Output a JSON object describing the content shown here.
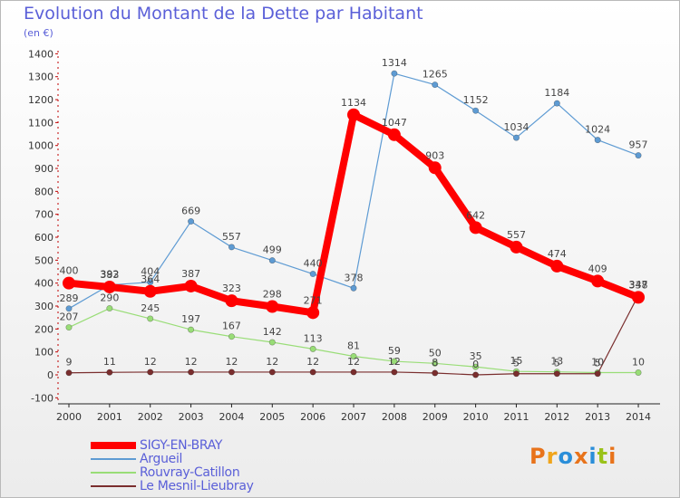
{
  "chart_data": {
    "type": "line",
    "title": "Evolution du Montant de la Dette par Habitant",
    "subtitle": "(en €)",
    "x": [
      "2000",
      "2001",
      "2002",
      "2003",
      "2004",
      "2005",
      "2006",
      "2007",
      "2008",
      "2009",
      "2010",
      "2011",
      "2012",
      "2013",
      "2014"
    ],
    "ylim": [
      -100,
      1400
    ],
    "yticks": [
      -100,
      0,
      100,
      200,
      300,
      400,
      500,
      600,
      700,
      800,
      900,
      1000,
      1100,
      1200,
      1300,
      1400
    ],
    "grid": false,
    "legend_position": "bottom-left",
    "series": [
      {
        "name": "SIGY-EN-BRAY",
        "color": "#ff0000",
        "emphasis": true,
        "values": [
          400,
          383,
          364,
          387,
          323,
          298,
          271,
          1134,
          1047,
          903,
          642,
          557,
          474,
          409,
          338
        ]
      },
      {
        "name": "Argueil",
        "color": "#5e9bd3",
        "emphasis": false,
        "values": [
          289,
          392,
          404,
          669,
          557,
          499,
          440,
          378,
          1314,
          1265,
          1152,
          1034,
          1184,
          1024,
          957
        ]
      },
      {
        "name": "Rouvray-Catillon",
        "color": "#99dd77",
        "emphasis": false,
        "values": [
          207,
          290,
          245,
          197,
          167,
          142,
          113,
          81,
          59,
          50,
          35,
          15,
          13,
          10,
          10
        ]
      },
      {
        "name": "Le Mesnil-Lieubray",
        "color": "#7a2e2e",
        "emphasis": false,
        "values": [
          9,
          11,
          12,
          12,
          12,
          12,
          12,
          12,
          12,
          8,
          0,
          5,
          5,
          5,
          347
        ]
      }
    ]
  },
  "logo": {
    "letters": [
      "P",
      "r",
      "o",
      "x",
      "i",
      "t",
      "i"
    ],
    "colors": [
      "#e8731b",
      "#f0a51c",
      "#2a8ed9",
      "#e8731b",
      "#2a8ed9",
      "#9ac21a",
      "#e8731b"
    ]
  }
}
